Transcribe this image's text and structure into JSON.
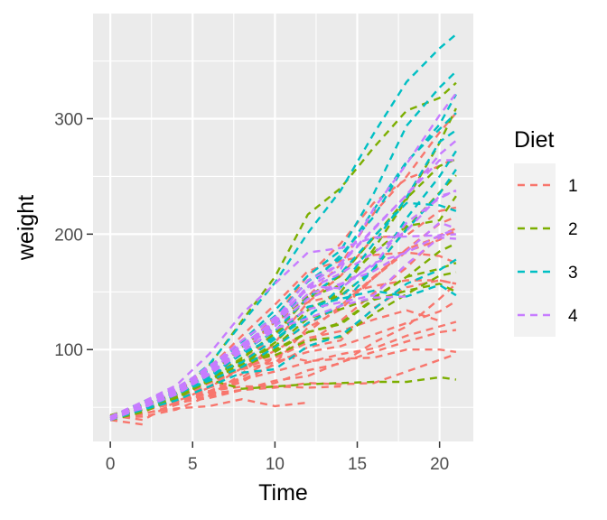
{
  "chart_data": {
    "type": "line",
    "title": "",
    "xlabel": "Time",
    "ylabel": "weight",
    "xlim": [
      -1.05,
      22.05
    ],
    "ylim": [
      20.4,
      391.1
    ],
    "x_ticks": [
      0,
      5,
      10,
      15,
      20
    ],
    "y_ticks": [
      100,
      200,
      300
    ],
    "grid": true,
    "panel_background": "#ebebeb",
    "line_style": "dashed",
    "legend": {
      "title": "Diet",
      "position": "right"
    },
    "x": [
      0,
      2,
      4,
      6,
      8,
      10,
      12,
      14,
      16,
      18,
      20,
      21
    ],
    "groups": [
      {
        "name": "1",
        "color": "#F8766D",
        "chicks": [
          [
            42,
            51,
            59,
            64,
            76,
            93,
            106,
            125,
            149,
            171,
            199,
            205
          ],
          [
            40,
            49,
            58,
            72,
            84,
            103,
            122,
            138,
            162,
            187,
            209,
            215
          ],
          [
            43,
            39,
            55,
            67,
            84,
            99,
            115,
            138,
            163,
            187,
            198,
            202
          ],
          [
            42,
            49,
            56,
            67,
            74,
            87,
            102,
            108,
            136,
            154,
            160,
            157
          ],
          [
            41,
            42,
            48,
            60,
            79,
            106,
            141,
            164,
            197,
            199,
            220,
            223
          ],
          [
            41,
            49,
            59,
            74,
            97,
            124,
            141,
            148,
            155,
            160,
            160,
            157
          ],
          [
            41,
            49,
            57,
            71,
            89,
            112,
            146,
            174,
            218,
            250,
            288,
            305
          ],
          [
            42,
            50,
            61,
            71,
            84,
            93,
            110,
            116,
            126,
            134,
            125,
            null
          ],
          [
            42,
            51,
            59,
            68,
            85,
            96,
            90,
            92,
            93,
            100,
            100,
            98
          ],
          [
            41,
            44,
            52,
            63,
            74,
            81,
            89,
            96,
            101,
            112,
            120,
            124
          ],
          [
            43,
            51,
            63,
            84,
            112,
            139,
            168,
            177,
            182,
            184,
            181,
            175
          ],
          [
            41,
            49,
            56,
            62,
            72,
            88,
            119,
            135,
            162,
            185,
            195,
            205
          ],
          [
            41,
            48,
            53,
            60,
            65,
            67,
            71,
            70,
            71,
            81,
            91,
            96
          ],
          [
            41,
            49,
            62,
            79,
            101,
            128,
            164,
            192,
            227,
            248,
            259,
            266
          ],
          [
            41,
            49,
            56,
            64,
            68,
            68,
            67,
            68,
            null,
            null,
            null,
            null
          ],
          [
            41,
            45,
            49,
            51,
            57,
            51,
            54,
            null,
            null,
            null,
            null,
            null
          ],
          [
            42,
            51,
            61,
            72,
            83,
            89,
            98,
            103,
            113,
            123,
            133,
            142
          ],
          [
            39,
            35,
            null,
            null,
            null,
            null,
            null,
            null,
            null,
            null,
            null,
            null
          ],
          [
            43,
            48,
            55,
            62,
            65,
            71,
            82,
            88,
            106,
            120,
            144,
            157
          ],
          [
            41,
            47,
            54,
            58,
            65,
            73,
            77,
            89,
            98,
            107,
            115,
            117
          ]
        ]
      },
      {
        "name": "2",
        "color": "#7CAE00",
        "chicks": [
          [
            40,
            50,
            62,
            86,
            125,
            163,
            217,
            240,
            275,
            307,
            318,
            331
          ],
          [
            41,
            55,
            64,
            77,
            90,
            95,
            108,
            111,
            131,
            148,
            164,
            167
          ],
          [
            43,
            52,
            61,
            73,
            90,
            103,
            127,
            135,
            145,
            163,
            170,
            175
          ],
          [
            42,
            52,
            58,
            74,
            66,
            68,
            70,
            71,
            72,
            72,
            76,
            74
          ],
          [
            40,
            49,
            62,
            78,
            102,
            124,
            146,
            164,
            197,
            231,
            259,
            265
          ],
          [
            42,
            48,
            57,
            74,
            93,
            114,
            136,
            147,
            169,
            205,
            236,
            251
          ],
          [
            39,
            46,
            58,
            73,
            87,
            100,
            115,
            123,
            144,
            163,
            185,
            192
          ],
          [
            39,
            46,
            58,
            73,
            92,
            114,
            145,
            156,
            184,
            207,
            212,
            233
          ],
          [
            39,
            48,
            59,
            74,
            87,
            106,
            134,
            150,
            187,
            230,
            279,
            309
          ],
          [
            42,
            48,
            59,
            72,
            85,
            98,
            115,
            122,
            143,
            151,
            157,
            150
          ]
        ]
      },
      {
        "name": "3",
        "color": "#00BFC4",
        "chicks": [
          [
            42,
            53,
            62,
            73,
            85,
            102,
            123,
            138,
            170,
            204,
            235,
            256
          ],
          [
            41,
            49,
            65,
            82,
            107,
            129,
            159,
            179,
            221,
            263,
            291,
            305
          ],
          [
            39,
            50,
            63,
            77,
            96,
            111,
            137,
            144,
            151,
            146,
            156,
            147
          ],
          [
            41,
            49,
            63,
            85,
            107,
            134,
            164,
            186,
            235,
            294,
            327,
            341
          ],
          [
            41,
            53,
            64,
            87,
            123,
            158,
            201,
            238,
            287,
            332,
            361,
            373
          ],
          [
            39,
            48,
            61,
            76,
            98,
            116,
            145,
            166,
            198,
            227,
            225,
            220
          ],
          [
            41,
            48,
            56,
            68,
            80,
            83,
            103,
            112,
            135,
            157,
            169,
            178
          ],
          [
            41,
            49,
            61,
            74,
            98,
            109,
            128,
            154,
            192,
            232,
            280,
            290
          ],
          [
            42,
            50,
            61,
            78,
            89,
            109,
            130,
            146,
            170,
            214,
            250,
            272
          ],
          [
            41,
            55,
            66,
            79,
            101,
            120,
            154,
            182,
            215,
            262,
            295,
            321
          ]
        ]
      },
      {
        "name": "4",
        "color": "#C77CFF",
        "chicks": [
          [
            42,
            51,
            66,
            85,
            103,
            124,
            155,
            153,
            175,
            184,
            199,
            204
          ],
          [
            42,
            49,
            63,
            84,
            103,
            126,
            160,
            174,
            204,
            234,
            269,
            281
          ],
          [
            42,
            55,
            69,
            96,
            131,
            157,
            184,
            188,
            197,
            198,
            199,
            200
          ],
          [
            42,
            51,
            65,
            86,
            103,
            118,
            127,
            138,
            145,
            146,
            null,
            null
          ],
          [
            41,
            50,
            61,
            78,
            98,
            117,
            135,
            141,
            147,
            174,
            197,
            196
          ],
          [
            40,
            52,
            62,
            82,
            101,
            120,
            144,
            156,
            173,
            210,
            231,
            238
          ],
          [
            41,
            53,
            66,
            79,
            100,
            123,
            148,
            157,
            168,
            185,
            210,
            205
          ],
          [
            39,
            50,
            62,
            80,
            104,
            125,
            154,
            170,
            222,
            261,
            303,
            322
          ],
          [
            40,
            53,
            64,
            85,
            108,
            128,
            152,
            166,
            184,
            203,
            233,
            237
          ],
          [
            41,
            54,
            67,
            84,
            105,
            122,
            155,
            175,
            205,
            234,
            264,
            264
          ]
        ]
      }
    ]
  }
}
